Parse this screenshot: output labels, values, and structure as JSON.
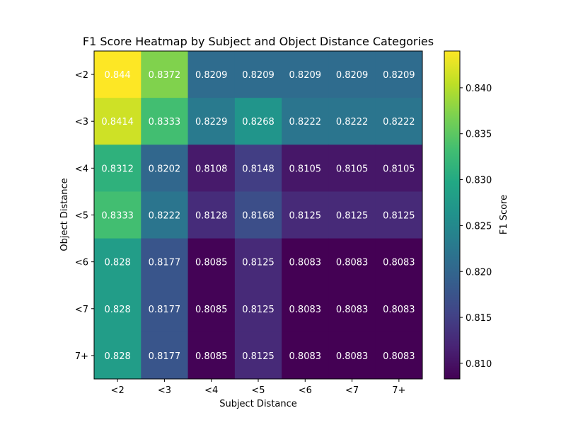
{
  "chart_data": {
    "type": "heatmap",
    "title": "F1 Score Heatmap by Subject and Object Distance Categories",
    "xlabel": "Subject Distance",
    "ylabel": "Object Distance",
    "x_categories": [
      "<2",
      "<3",
      "<4",
      "<5",
      "<6",
      "<7",
      "7+"
    ],
    "y_categories": [
      "<2",
      "<3",
      "<4",
      "<5",
      "<6",
      "<7",
      "7+"
    ],
    "values": [
      [
        "0.844",
        "0.8372",
        "0.8209",
        "0.8209",
        "0.8209",
        "0.8209",
        "0.8209"
      ],
      [
        "0.8414",
        "0.8333",
        "0.8229",
        "0.8268",
        "0.8222",
        "0.8222",
        "0.8222"
      ],
      [
        "0.8312",
        "0.8202",
        "0.8108",
        "0.8148",
        "0.8105",
        "0.8105",
        "0.8105"
      ],
      [
        "0.8333",
        "0.8222",
        "0.8128",
        "0.8168",
        "0.8125",
        "0.8125",
        "0.8125"
      ],
      [
        "0.828",
        "0.8177",
        "0.8085",
        "0.8125",
        "0.8083",
        "0.8083",
        "0.8083"
      ],
      [
        "0.828",
        "0.8177",
        "0.8085",
        "0.8125",
        "0.8083",
        "0.8083",
        "0.8083"
      ],
      [
        "0.828",
        "0.8177",
        "0.8085",
        "0.8125",
        "0.8083",
        "0.8083",
        "0.8083"
      ]
    ],
    "colormap": "viridis",
    "colorbar": {
      "label": "F1 Score",
      "range": [
        0.8083,
        0.844
      ],
      "ticks": [
        "0.810",
        "0.815",
        "0.820",
        "0.825",
        "0.830",
        "0.835",
        "0.840"
      ]
    }
  }
}
